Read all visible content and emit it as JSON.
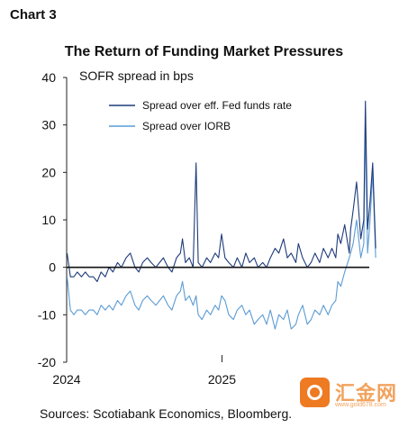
{
  "chart_label": "Chart 3",
  "source": "Sources: Scotiabank Economics, Bloomberg.",
  "watermark": {
    "text": "汇金网",
    "url": "www.gold678.com"
  },
  "chart_data": {
    "type": "line",
    "title": "The Return of Funding Market Pressures",
    "ylabel": "SOFR spread in bps",
    "xlabel": "",
    "ylim": [
      -20,
      40
    ],
    "yticks": [
      -20,
      -10,
      0,
      10,
      20,
      30,
      40
    ],
    "xlim": [
      "2024-01-01",
      "2025-12-31"
    ],
    "xticks": [
      {
        "label": "2024",
        "date": "2024-01-01"
      },
      {
        "label": "2025",
        "date": "2025-01-01"
      }
    ],
    "legend_position": "top",
    "zero_line": true,
    "series": [
      {
        "name": "Spread over eff. Fed funds rate",
        "color": "#1f3b7a",
        "x": [
          "2024-01-02",
          "2024-01-10",
          "2024-01-18",
          "2024-01-26",
          "2024-02-05",
          "2024-02-14",
          "2024-02-23",
          "2024-03-04",
          "2024-03-13",
          "2024-03-22",
          "2024-04-01",
          "2024-04-10",
          "2024-04-19",
          "2024-04-30",
          "2024-05-09",
          "2024-05-20",
          "2024-05-30",
          "2024-06-10",
          "2024-06-19",
          "2024-06-28",
          "2024-07-09",
          "2024-07-18",
          "2024-07-29",
          "2024-08-07",
          "2024-08-16",
          "2024-08-27",
          "2024-09-05",
          "2024-09-16",
          "2024-09-25",
          "2024-09-30",
          "2024-10-07",
          "2024-10-16",
          "2024-10-25",
          "2024-11-01",
          "2024-11-06",
          "2024-11-15",
          "2024-11-26",
          "2024-12-05",
          "2024-12-16",
          "2024-12-24",
          "2024-12-31",
          "2025-01-08",
          "2025-01-17",
          "2025-01-28",
          "2025-02-06",
          "2025-02-17",
          "2025-02-26",
          "2025-03-07",
          "2025-03-18",
          "2025-03-27",
          "2025-04-07",
          "2025-04-16",
          "2025-04-25",
          "2025-05-06",
          "2025-05-15",
          "2025-05-26",
          "2025-06-04",
          "2025-06-13",
          "2025-06-24",
          "2025-06-30",
          "2025-07-10",
          "2025-07-21",
          "2025-07-30",
          "2025-08-08",
          "2025-08-19",
          "2025-08-28",
          "2025-09-08",
          "2025-09-17",
          "2025-09-26",
          "2025-10-01",
          "2025-10-08",
          "2025-10-17",
          "2025-10-28",
          "2025-10-31",
          "2025-11-06",
          "2025-11-14",
          "2025-11-24",
          "2025-12-01",
          "2025-12-05",
          "2025-12-10",
          "2025-12-16",
          "2025-12-22",
          "2025-12-29"
        ],
        "y": [
          3,
          -2,
          -2,
          -1,
          -2,
          -1,
          -2,
          -2,
          -3,
          -1,
          -2,
          0,
          -1,
          1,
          0,
          2,
          3,
          0,
          -1,
          1,
          2,
          1,
          0,
          1,
          2,
          0,
          -1,
          2,
          3,
          6,
          1,
          2,
          0,
          22,
          1,
          0,
          2,
          1,
          3,
          2,
          7,
          2,
          1,
          0,
          2,
          0,
          3,
          1,
          2,
          0,
          1,
          0,
          2,
          4,
          3,
          6,
          2,
          3,
          1,
          5,
          2,
          0,
          1,
          3,
          1,
          4,
          2,
          4,
          2,
          7,
          5,
          9,
          3,
          8,
          12,
          18,
          6,
          10,
          35,
          8,
          14,
          22,
          4
        ]
      },
      {
        "name": "Spread over IORB",
        "color": "#5b9bd5",
        "x": [
          "2024-01-02",
          "2024-01-10",
          "2024-01-18",
          "2024-01-26",
          "2024-02-05",
          "2024-02-14",
          "2024-02-23",
          "2024-03-04",
          "2024-03-13",
          "2024-03-22",
          "2024-04-01",
          "2024-04-10",
          "2024-04-19",
          "2024-04-30",
          "2024-05-09",
          "2024-05-20",
          "2024-05-30",
          "2024-06-10",
          "2024-06-19",
          "2024-06-28",
          "2024-07-09",
          "2024-07-18",
          "2024-07-29",
          "2024-08-07",
          "2024-08-16",
          "2024-08-27",
          "2024-09-05",
          "2024-09-16",
          "2024-09-25",
          "2024-09-30",
          "2024-10-07",
          "2024-10-16",
          "2024-10-25",
          "2024-11-01",
          "2024-11-06",
          "2024-11-15",
          "2024-11-26",
          "2024-12-05",
          "2024-12-16",
          "2024-12-24",
          "2024-12-31",
          "2025-01-08",
          "2025-01-17",
          "2025-01-28",
          "2025-02-06",
          "2025-02-17",
          "2025-02-26",
          "2025-03-07",
          "2025-03-18",
          "2025-03-27",
          "2025-04-07",
          "2025-04-16",
          "2025-04-25",
          "2025-05-06",
          "2025-05-15",
          "2025-05-26",
          "2025-06-04",
          "2025-06-13",
          "2025-06-24",
          "2025-06-30",
          "2025-07-10",
          "2025-07-21",
          "2025-07-30",
          "2025-08-08",
          "2025-08-19",
          "2025-08-28",
          "2025-09-08",
          "2025-09-17",
          "2025-09-26",
          "2025-10-01",
          "2025-10-08",
          "2025-10-17",
          "2025-10-28",
          "2025-10-31",
          "2025-11-06",
          "2025-11-14",
          "2025-11-24",
          "2025-12-01",
          "2025-12-05",
          "2025-12-10",
          "2025-12-16",
          "2025-12-22",
          "2025-12-29"
        ],
        "y": [
          -2,
          -9,
          -10,
          -9,
          -9,
          -10,
          -9,
          -9,
          -10,
          -8,
          -9,
          -8,
          -9,
          -7,
          -8,
          -6,
          -5,
          -8,
          -9,
          -7,
          -6,
          -7,
          -8,
          -7,
          -6,
          -8,
          -9,
          -6,
          -5,
          -3,
          -7,
          -6,
          -8,
          -6,
          -10,
          -11,
          -9,
          -10,
          -8,
          -9,
          -6,
          -7,
          -10,
          -11,
          -9,
          -8,
          -10,
          -9,
          -12,
          -11,
          -10,
          -12,
          -9,
          -13,
          -10,
          -11,
          -9,
          -13,
          -12,
          -10,
          -8,
          -12,
          -11,
          -9,
          -10,
          -8,
          -10,
          -8,
          -7,
          -3,
          -4,
          -1,
          2,
          3,
          5,
          10,
          2,
          5,
          30,
          3,
          10,
          20,
          2
        ]
      }
    ]
  }
}
